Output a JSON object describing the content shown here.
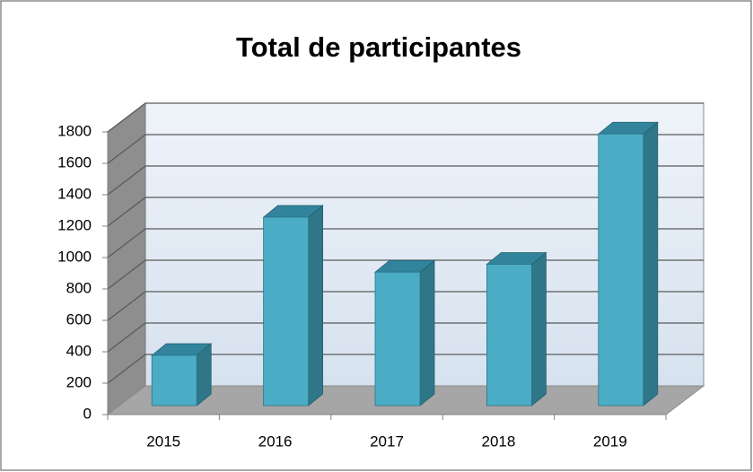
{
  "chart_data": {
    "type": "bar",
    "title": "Total de participantes",
    "categories": [
      "2015",
      "2016",
      "2017",
      "2018",
      "2019"
    ],
    "values": [
      320,
      1200,
      850,
      900,
      1730
    ],
    "color": "#4bacc6",
    "ylim": [
      0,
      1800
    ],
    "yticks": [
      0,
      200,
      400,
      600,
      800,
      1000,
      1200,
      1400,
      1600,
      1800
    ],
    "grid": true
  }
}
